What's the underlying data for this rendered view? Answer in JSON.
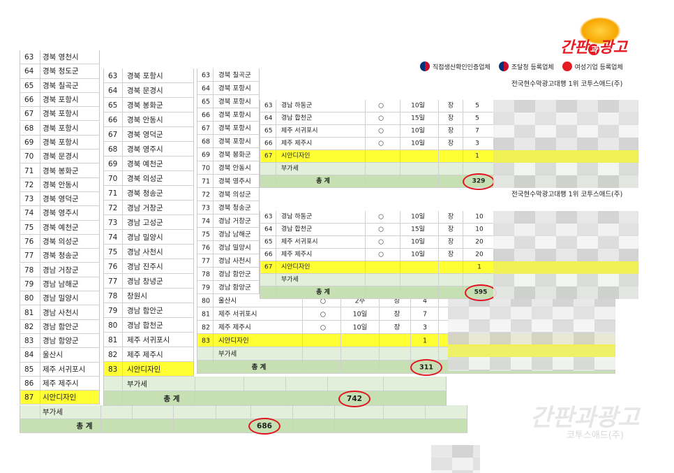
{
  "logo": {
    "part1": "간판",
    "part2": "과",
    "part3": "광고"
  },
  "badges": [
    "직접생산확인인증업체",
    "조달청 등록업체",
    "여성기업 등록업체"
  ],
  "captions": [
    "전국현수막광고대행 1위 코투스애드(주)",
    "전국현수막광고대행 1위 코투스애드(주)"
  ],
  "watermark": {
    "line1": "간판과광고",
    "line2": "코투스애드(주)"
  },
  "sheets": [
    {
      "rows": [
        {
          "no": 63,
          "name": "경북 영천시"
        },
        {
          "no": 64,
          "name": "경북 청도군"
        },
        {
          "no": 65,
          "name": "경북 칠곡군"
        },
        {
          "no": 66,
          "name": "경북 포항시"
        },
        {
          "no": 67,
          "name": "경북 포항시"
        },
        {
          "no": 68,
          "name": "경북 포항시"
        },
        {
          "no": 69,
          "name": "경북 포항시"
        },
        {
          "no": 70,
          "name": "경북 문경시"
        },
        {
          "no": 71,
          "name": "경북 봉화군"
        },
        {
          "no": 72,
          "name": "경북 안동시"
        },
        {
          "no": 73,
          "name": "경북 영덕군"
        },
        {
          "no": 74,
          "name": "경북 영주시"
        },
        {
          "no": 75,
          "name": "경북 예천군"
        },
        {
          "no": 76,
          "name": "경북 의성군"
        },
        {
          "no": 77,
          "name": "경북 청송군"
        },
        {
          "no": 78,
          "name": "경남 거창군"
        },
        {
          "no": 79,
          "name": "경남 남해군"
        },
        {
          "no": 80,
          "name": "경남 밀양시"
        },
        {
          "no": 81,
          "name": "경남 사천시"
        },
        {
          "no": 82,
          "name": "경남 함안군"
        },
        {
          "no": 83,
          "name": "경남 함양군"
        },
        {
          "no": 84,
          "name": "울산시"
        },
        {
          "no": 85,
          "name": "제주 서귀포시"
        },
        {
          "no": 86,
          "name": "제주 제주시"
        },
        {
          "no": 87,
          "name": "시안디자인"
        }
      ],
      "vat": "부가세",
      "total_label": "총 계",
      "total": 686
    },
    {
      "rows": [
        {
          "no": 63,
          "name": "경북 포항시"
        },
        {
          "no": 64,
          "name": "경북 문경시"
        },
        {
          "no": 65,
          "name": "경북 봉화군"
        },
        {
          "no": 66,
          "name": "경북 안동시"
        },
        {
          "no": 67,
          "name": "경북 영덕군"
        },
        {
          "no": 68,
          "name": "경북 영주시"
        },
        {
          "no": 69,
          "name": "경북 예천군"
        },
        {
          "no": 70,
          "name": "경북 의성군"
        },
        {
          "no": 71,
          "name": "경북 청송군"
        },
        {
          "no": 72,
          "name": "경남 거창군"
        },
        {
          "no": 73,
          "name": "경남 고성군"
        },
        {
          "no": 74,
          "name": "경남 밀양시"
        },
        {
          "no": 75,
          "name": "경남 사천시"
        },
        {
          "no": 76,
          "name": "경남 진주시"
        },
        {
          "no": 77,
          "name": "경남 창녕군"
        },
        {
          "no": 78,
          "name": "창원시"
        },
        {
          "no": 79,
          "name": "경남 함안군"
        },
        {
          "no": 80,
          "name": "경남 합천군"
        },
        {
          "no": 81,
          "name": "제주 서귀포시"
        },
        {
          "no": 82,
          "name": "제주 제주시"
        },
        {
          "no": 83,
          "name": "시안디자인"
        }
      ],
      "vat": "부가세",
      "total_label": "총 계",
      "total": 742
    },
    {
      "rows": [
        {
          "no": 63,
          "name": "경북 칠곡군"
        },
        {
          "no": 64,
          "name": "경북 포항시"
        },
        {
          "no": 65,
          "name": "경북 포항시"
        },
        {
          "no": 66,
          "name": "경북 포항시"
        },
        {
          "no": 67,
          "name": "경북 포항시"
        },
        {
          "no": 68,
          "name": "경북 포항시"
        },
        {
          "no": 69,
          "name": "경북 봉화군"
        },
        {
          "no": 70,
          "name": "경북 안동시"
        },
        {
          "no": 71,
          "name": "경북 영주시"
        },
        {
          "no": 72,
          "name": "경북 의성군"
        },
        {
          "no": 73,
          "name": "경북 청송군"
        },
        {
          "no": 74,
          "name": "경남 거창군"
        },
        {
          "no": 75,
          "name": "경남 남해군"
        },
        {
          "no": 76,
          "name": "경남 밀양시"
        },
        {
          "no": 77,
          "name": "경남 사천시"
        },
        {
          "no": 78,
          "name": "경남 함안군"
        },
        {
          "no": 79,
          "name": "경남 함양군"
        },
        {
          "no": 80,
          "name": "울산시",
          "mark": "○",
          "period": "2주",
          "unit": "장",
          "qty": 4
        },
        {
          "no": 81,
          "name": "제주 서귀포시",
          "mark": "○",
          "period": "10일",
          "unit": "장",
          "qty": 7
        },
        {
          "no": 82,
          "name": "제주 제주시",
          "mark": "○",
          "period": "10일",
          "unit": "장",
          "qty": 3
        },
        {
          "no": 83,
          "name": "시안디자인",
          "qty": 1
        }
      ],
      "vat": "부가세",
      "total_label": "총 계",
      "total": 311
    },
    {
      "rows": [
        {
          "no": 63,
          "name": "경남 하동군",
          "mark": "○",
          "period": "10일",
          "unit": "장",
          "qty": 5
        },
        {
          "no": 64,
          "name": "경남 합천군",
          "mark": "○",
          "period": "15일",
          "unit": "장",
          "qty": 5
        },
        {
          "no": 65,
          "name": "제주 서귀포시",
          "mark": "○",
          "period": "10일",
          "unit": "장",
          "qty": 7
        },
        {
          "no": 66,
          "name": "제주 제주시",
          "mark": "○",
          "period": "10일",
          "unit": "장",
          "qty": 3
        },
        {
          "no": 67,
          "name": "시안디자인",
          "qty": 1
        }
      ],
      "vat": "부가세",
      "total_label": "총 계",
      "total": 329
    },
    {
      "rows": [
        {
          "no": 63,
          "name": "경남 하동군",
          "mark": "○",
          "period": "10일",
          "unit": "장",
          "qty": 10
        },
        {
          "no": 64,
          "name": "경남 합천군",
          "mark": "○",
          "period": "15일",
          "unit": "장",
          "qty": 10
        },
        {
          "no": 65,
          "name": "제주 서귀포시",
          "mark": "○",
          "period": "10일",
          "unit": "장",
          "qty": 20
        },
        {
          "no": 66,
          "name": "제주 제주시",
          "mark": "○",
          "period": "10일",
          "unit": "장",
          "qty": 20
        },
        {
          "no": 67,
          "name": "시안디자인",
          "qty": 1
        }
      ],
      "vat": "부가세",
      "total_label": "총 계",
      "total": 595
    }
  ]
}
